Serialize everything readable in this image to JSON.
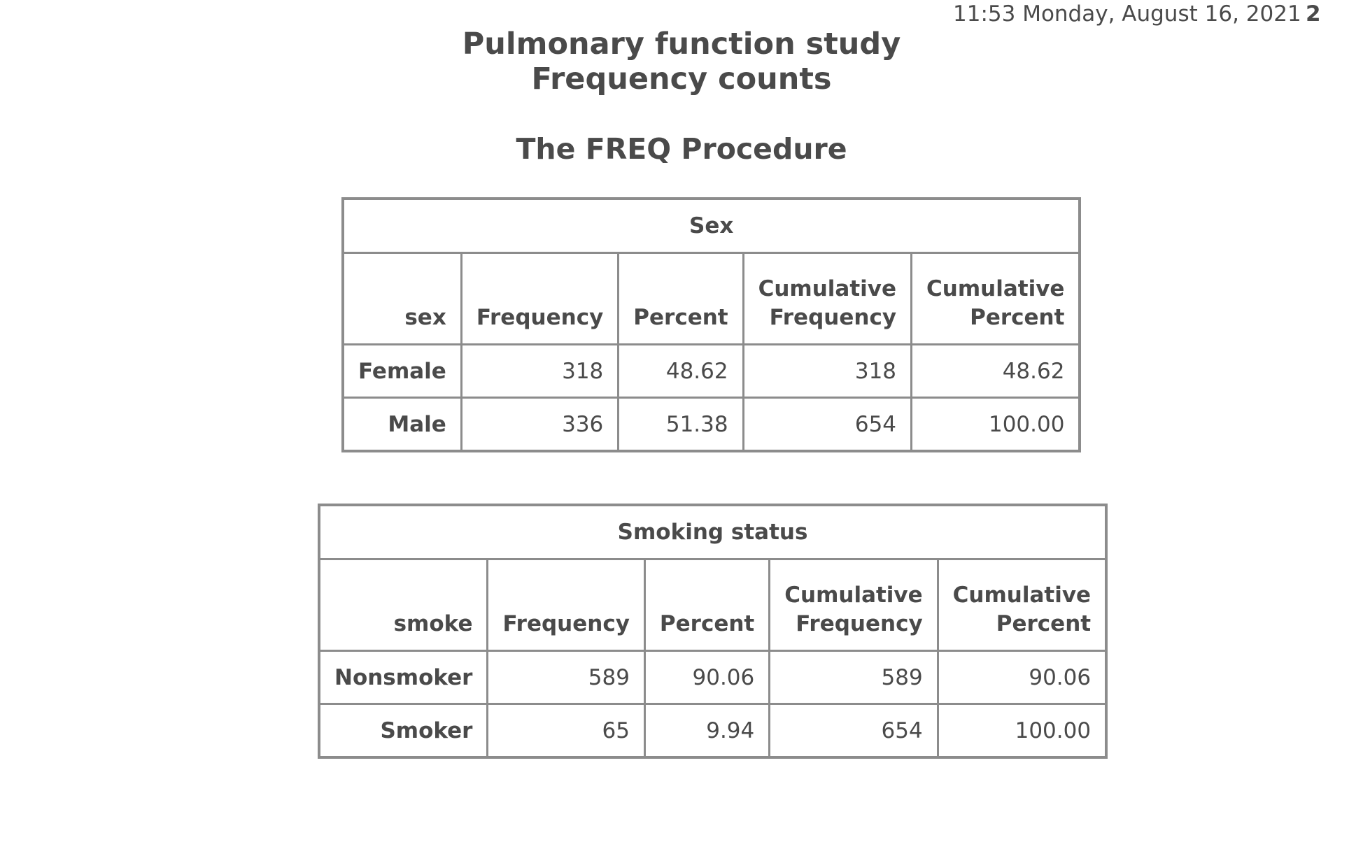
{
  "header": {
    "timestamp": "11:53 Monday, August 16, 2021",
    "page_number": "2"
  },
  "titles": {
    "title_1": "Pulmonary function study",
    "title_2": "Frequency counts",
    "procedure": "The FREQ Procedure"
  },
  "tables": [
    {
      "caption": "Sex",
      "columns": [
        "sex",
        "Frequency",
        "Percent",
        "Cumulative Frequency",
        "Cumulative Percent"
      ],
      "rows": [
        {
          "label": "Female",
          "frequency": "318",
          "percent": "48.62",
          "cum_frequency": "318",
          "cum_percent": "48.62"
        },
        {
          "label": "Male",
          "frequency": "336",
          "percent": "51.38",
          "cum_frequency": "654",
          "cum_percent": "100.00"
        }
      ]
    },
    {
      "caption": "Smoking status",
      "columns": [
        "smoke",
        "Frequency",
        "Percent",
        "Cumulative Frequency",
        "Cumulative Percent"
      ],
      "rows": [
        {
          "label": "Nonsmoker",
          "frequency": "589",
          "percent": "90.06",
          "cum_frequency": "589",
          "cum_percent": "90.06"
        },
        {
          "label": "Smoker",
          "frequency": "65",
          "percent": "9.94",
          "cum_frequency": "654",
          "cum_percent": "100.00"
        }
      ]
    }
  ]
}
